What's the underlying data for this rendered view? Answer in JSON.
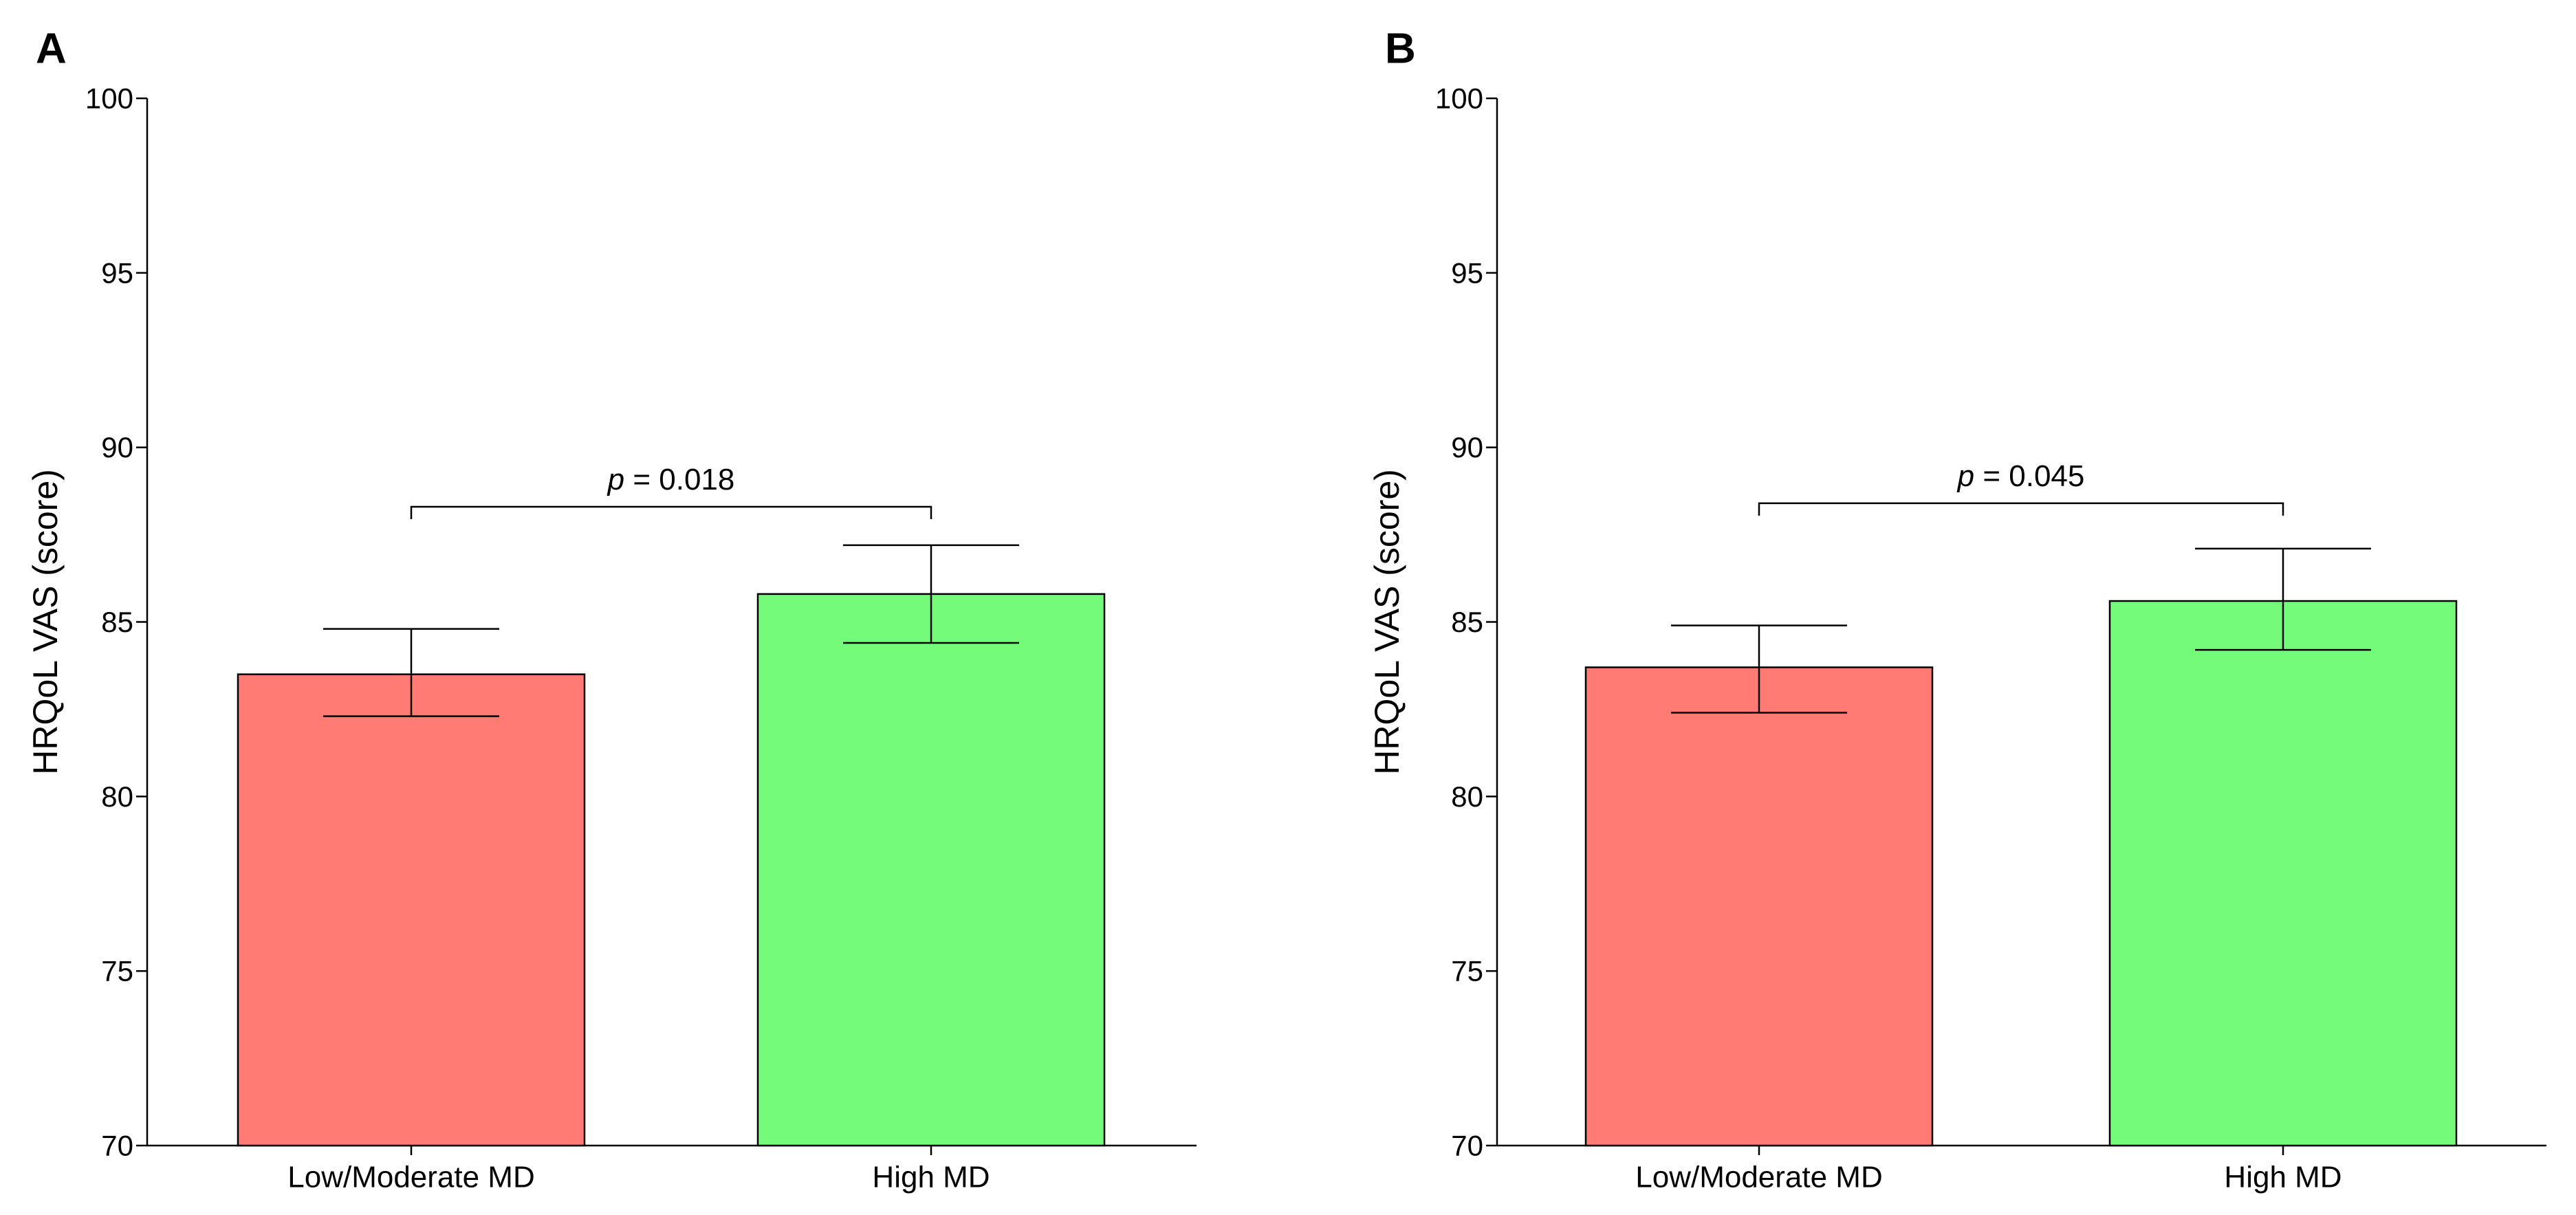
{
  "chart_data": [
    {
      "type": "bar",
      "panel_label": "A",
      "categories": [
        "Low/Moderate MD",
        "High MD"
      ],
      "values": [
        83.5,
        85.8
      ],
      "error_bars": [
        {
          "low": 82.3,
          "high": 84.8
        },
        {
          "low": 84.4,
          "high": 87.2
        }
      ],
      "bar_colors": [
        "#ff7b73",
        "#73fb79"
      ],
      "ylabel": "HRQoL VAS (score)",
      "xlabel": "",
      "ylim": [
        70,
        100
      ],
      "yticks": [
        70,
        75,
        80,
        85,
        90,
        95,
        100
      ],
      "grid": false,
      "annotation": {
        "p_symbol": "p",
        "text": " = 0.018",
        "bracket_y": 88.3
      }
    },
    {
      "type": "bar",
      "panel_label": "B",
      "categories": [
        "Low/Moderate MD",
        "High MD"
      ],
      "values": [
        83.7,
        85.6
      ],
      "error_bars": [
        {
          "low": 82.4,
          "high": 84.9
        },
        {
          "low": 84.2,
          "high": 87.1
        }
      ],
      "bar_colors": [
        "#ff7b73",
        "#73fb79"
      ],
      "ylabel": "HRQoL VAS (score)",
      "xlabel": "",
      "ylim": [
        70,
        100
      ],
      "yticks": [
        70,
        75,
        80,
        85,
        90,
        95,
        100
      ],
      "grid": false,
      "annotation": {
        "p_symbol": "p",
        "text": " = 0.045",
        "bracket_y": 88.4
      }
    }
  ]
}
